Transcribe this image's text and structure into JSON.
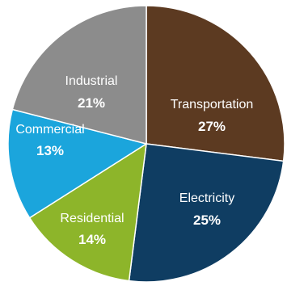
{
  "chart_data": {
    "type": "pie",
    "categories": [
      "Transportation",
      "Electricity",
      "Residential",
      "Commercial",
      "Industrial"
    ],
    "values": [
      27,
      25,
      14,
      13,
      21
    ],
    "value_labels": [
      "27%",
      "25%",
      "14%",
      "13%",
      "21%"
    ],
    "colors": [
      "#5c3a21",
      "#0f3d62",
      "#8db52a",
      "#1ba5dc",
      "#8c8c8c"
    ],
    "start_angle": "12 o'clock",
    "direction": "clockwise",
    "legend": "none"
  }
}
